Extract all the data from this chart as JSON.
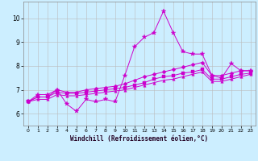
{
  "xlabel": "Windchill (Refroidissement éolien,°C)",
  "background_color": "#cceeff",
  "line_color": "#cc00cc",
  "grid_color": "#bbbbbb",
  "xlim": [
    -0.5,
    23.5
  ],
  "ylim": [
    5.5,
    10.7
  ],
  "yticks": [
    6,
    7,
    8,
    9,
    10
  ],
  "xticks": [
    0,
    1,
    2,
    3,
    4,
    5,
    6,
    7,
    8,
    9,
    10,
    11,
    12,
    13,
    14,
    15,
    16,
    17,
    18,
    19,
    20,
    21,
    22,
    23
  ],
  "series": [
    [
      6.5,
      6.8,
      6.8,
      7.0,
      6.4,
      6.1,
      6.6,
      6.5,
      6.6,
      6.5,
      7.6,
      8.8,
      9.2,
      9.4,
      10.3,
      9.4,
      8.6,
      8.5,
      8.5,
      7.6,
      7.5,
      8.1,
      7.8,
      7.8
    ],
    [
      6.5,
      6.7,
      6.7,
      7.0,
      6.9,
      6.9,
      7.0,
      7.05,
      7.1,
      7.15,
      7.25,
      7.4,
      7.55,
      7.65,
      7.75,
      7.85,
      7.95,
      8.05,
      8.15,
      7.6,
      7.6,
      7.7,
      7.8,
      7.8
    ],
    [
      6.5,
      6.7,
      6.7,
      6.9,
      6.85,
      6.85,
      6.9,
      6.95,
      7.0,
      7.05,
      7.1,
      7.2,
      7.3,
      7.45,
      7.55,
      7.6,
      7.7,
      7.75,
      7.85,
      7.45,
      7.45,
      7.55,
      7.65,
      7.7
    ],
    [
      6.5,
      6.6,
      6.6,
      6.8,
      6.75,
      6.75,
      6.8,
      6.85,
      6.9,
      6.95,
      7.0,
      7.1,
      7.2,
      7.3,
      7.4,
      7.45,
      7.55,
      7.65,
      7.75,
      7.35,
      7.35,
      7.45,
      7.55,
      7.65
    ]
  ]
}
